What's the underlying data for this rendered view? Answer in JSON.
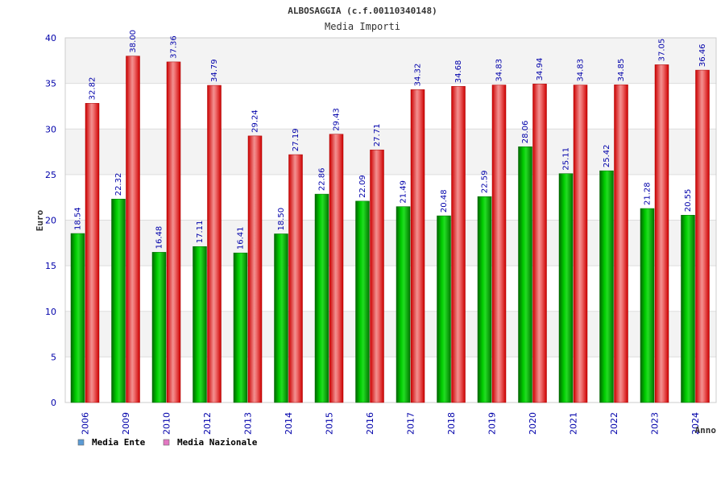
{
  "chart_data": {
    "type": "bar",
    "title": "ALBOSAGGIA (c.f.00110340148)",
    "subtitle": "Media Importi",
    "xlabel": "Anno",
    "ylabel": "Euro",
    "ylim": [
      0,
      40
    ],
    "yticks": [
      0,
      5,
      10,
      15,
      20,
      25,
      30,
      35,
      40
    ],
    "grid": true,
    "legend_position": "bottom-left",
    "categories": [
      "2006",
      "2009",
      "2010",
      "2012",
      "2013",
      "2014",
      "2015",
      "2016",
      "2017",
      "2018",
      "2019",
      "2020",
      "2021",
      "2022",
      "2023",
      "2024"
    ],
    "series": [
      {
        "name": "Media Ente",
        "color": "#00b000",
        "legend_color": "#5b9bd5",
        "values": [
          18.54,
          22.32,
          16.48,
          17.11,
          16.41,
          18.5,
          22.86,
          22.09,
          21.49,
          20.48,
          22.59,
          28.06,
          25.11,
          25.42,
          21.28,
          20.55
        ],
        "labels": [
          "18.54",
          "22.32",
          "16.48",
          "17.11",
          "16.41",
          "18.50",
          "22.86",
          "22.09",
          "21.49",
          "20.48",
          "22.59",
          "28.06",
          "25.11",
          "25.42",
          "21.28",
          "20.55"
        ]
      },
      {
        "name": "Media Nazionale",
        "color": "#e60000",
        "legend_color": "#e377c2",
        "values": [
          32.82,
          38.0,
          37.36,
          34.79,
          29.24,
          27.19,
          29.43,
          27.71,
          34.32,
          34.68,
          34.83,
          34.94,
          34.83,
          34.85,
          37.05,
          36.46
        ],
        "labels": [
          "32.82",
          "38.00",
          "37.36",
          "34.79",
          "29.24",
          "27.19",
          "29.43",
          "27.71",
          "34.32",
          "34.68",
          "34.83",
          "34.94",
          "34.83",
          "34.85",
          "37.05",
          "36.46"
        ]
      }
    ]
  }
}
